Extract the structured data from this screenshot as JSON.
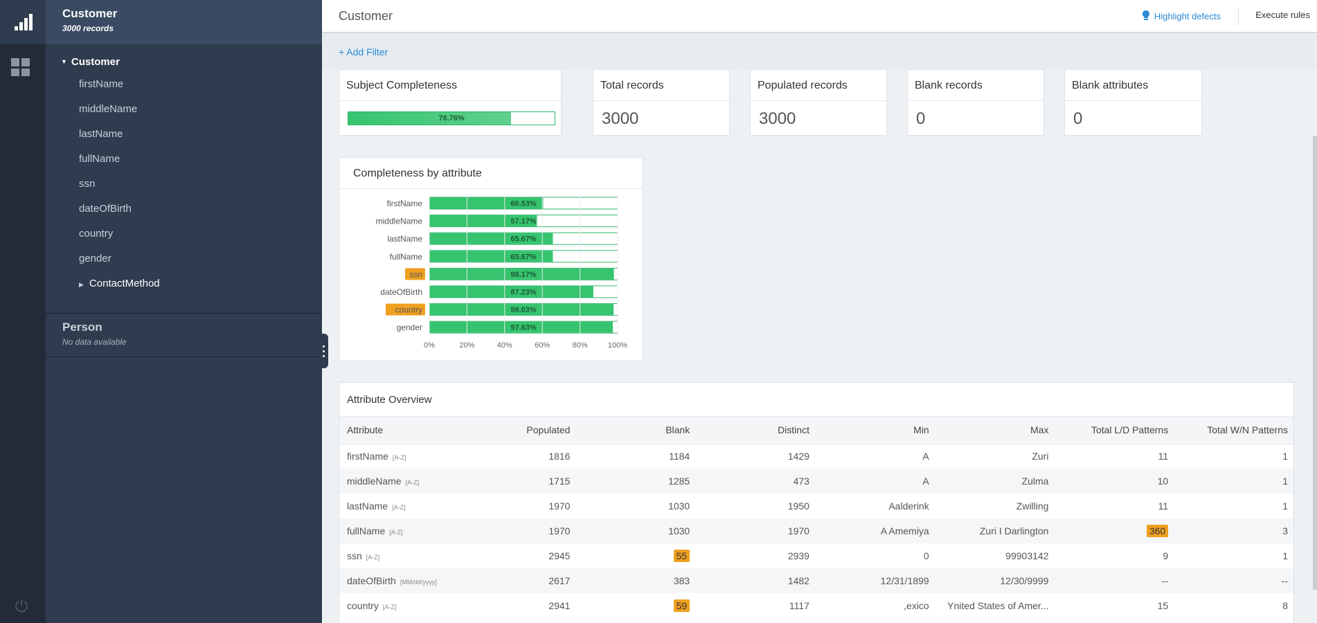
{
  "sidebar": {
    "header": {
      "title": "Customer",
      "subtitle": "3000 records"
    },
    "tree": {
      "root": "Customer",
      "items": [
        "firstName",
        "middleName",
        "lastName",
        "fullName",
        "ssn",
        "dateOfBirth",
        "country",
        "gender"
      ],
      "expandable": "ContactMethod"
    },
    "person": {
      "title": "Person",
      "subtitle": "No data available"
    }
  },
  "topbar": {
    "title": "Customer",
    "highlight_label": "Highlight defects",
    "execute_label": "Execute rules"
  },
  "filter": {
    "add_label": "+ Add Filter"
  },
  "summary": {
    "completeness": {
      "title": "Subject Completeness",
      "value": 78.76,
      "label": "78.76%"
    },
    "total": {
      "title": "Total records",
      "value": "3000"
    },
    "populated": {
      "title": "Populated records",
      "value": "3000"
    },
    "blank": {
      "title": "Blank records",
      "value": "0"
    },
    "blank_attrs": {
      "title": "Blank attributes",
      "value": "0"
    }
  },
  "colors": {
    "bar": "#36c46f",
    "badge": "#f0a020",
    "link": "#2b8ad6"
  },
  "chart_data": {
    "type": "bar",
    "orientation": "horizontal",
    "title": "Completeness by attribute",
    "categories": [
      "firstName",
      "middleName",
      "lastName",
      "fullName",
      "ssn",
      "dateOfBirth",
      "country",
      "gender"
    ],
    "values": [
      60.53,
      57.17,
      65.67,
      65.67,
      98.17,
      87.23,
      98.03,
      97.63
    ],
    "labels": [
      "60.53%",
      "57.17%",
      "65.67%",
      "65.67%",
      "98.17%",
      "87.23%",
      "98.03%",
      "97.63%"
    ],
    "highlighted": [
      "ssn",
      "country"
    ],
    "xticks": [
      "0%",
      "20%",
      "40%",
      "60%",
      "80%",
      "100%"
    ],
    "xlim": [
      0,
      100
    ]
  },
  "table": {
    "title": "Attribute Overview",
    "columns": [
      "Attribute",
      "Populated",
      "Blank",
      "Distinct",
      "Min",
      "Max",
      "Total L/D Patterns",
      "Total W/N Patterns"
    ],
    "rows": [
      {
        "attr": "firstName",
        "fmt": "[A-Z]",
        "populated": "1816",
        "blank": "1184",
        "distinct": "1429",
        "min": "A",
        "max": "Zuri",
        "ld": "11",
        "wn": "1"
      },
      {
        "attr": "middleName",
        "fmt": "[A-Z]",
        "populated": "1715",
        "blank": "1285",
        "distinct": "473",
        "min": "A",
        "max": "Zulma",
        "ld": "10",
        "wn": "1"
      },
      {
        "attr": "lastName",
        "fmt": "[A-Z]",
        "populated": "1970",
        "blank": "1030",
        "distinct": "1950",
        "min": "Aalderink",
        "max": "Zwilling",
        "ld": "11",
        "wn": "1"
      },
      {
        "attr": "fullName",
        "fmt": "[A-Z]",
        "populated": "1970",
        "blank": "1030",
        "distinct": "1970",
        "min": "A Amemiya",
        "max": "Zuri I Darlington",
        "ld": "360",
        "wn": "3"
      },
      {
        "attr": "ssn",
        "fmt": "[A-Z]",
        "populated": "2945",
        "blank": "55",
        "distinct": "2939",
        "min": "0",
        "max": "99903142",
        "ld": "9",
        "wn": "1"
      },
      {
        "attr": "dateOfBirth",
        "fmt": "[MM/dd/yyyy]",
        "populated": "2617",
        "blank": "383",
        "distinct": "1482",
        "min": "12/31/1899",
        "max": "12/30/9999",
        "ld": "--",
        "wn": "--"
      },
      {
        "attr": "country",
        "fmt": "[A-Z]",
        "populated": "2941",
        "blank": "59",
        "distinct": "1117",
        "min": ",exico",
        "max": "Ynited States of Amer...",
        "ld": "15",
        "wn": "8"
      }
    ],
    "highlight_cells": {
      "3": [
        "ld"
      ],
      "4": [
        "blank"
      ],
      "6": [
        "blank"
      ]
    }
  }
}
